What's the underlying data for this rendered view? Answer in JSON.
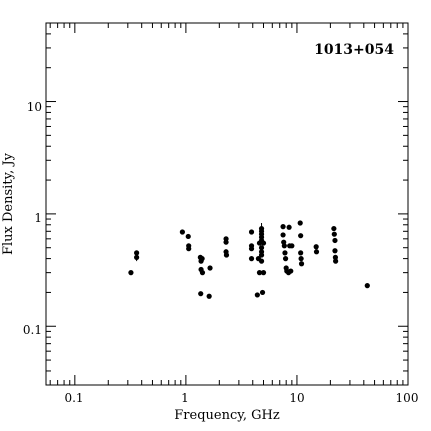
{
  "chart_data": {
    "type": "scatter",
    "title": "1013+054",
    "xlabel": "Frequency, GHz",
    "ylabel": "Flux Density, Jy",
    "xscale": "log",
    "yscale": "log",
    "xlim": [
      0.055,
      100
    ],
    "ylim": [
      0.03,
      50
    ],
    "grid": false,
    "x_tick_labels": [
      "0.1",
      "1",
      "10",
      "100"
    ],
    "y_tick_labels": [
      "0.1",
      "1",
      "10"
    ],
    "points": [
      {
        "x": 0.32,
        "y": 0.3
      },
      {
        "x": 0.36,
        "y": 0.45
      },
      {
        "x": 0.36,
        "y": 0.41,
        "err": 0.03
      },
      {
        "x": 0.93,
        "y": 0.69
      },
      {
        "x": 1.05,
        "y": 0.63
      },
      {
        "x": 1.06,
        "y": 0.52
      },
      {
        "x": 1.06,
        "y": 0.49
      },
      {
        "x": 1.35,
        "y": 0.41
      },
      {
        "x": 1.37,
        "y": 0.38
      },
      {
        "x": 1.37,
        "y": 0.32
      },
      {
        "x": 1.36,
        "y": 0.195
      },
      {
        "x": 1.4,
        "y": 0.4
      },
      {
        "x": 1.41,
        "y": 0.3
      },
      {
        "x": 1.62,
        "y": 0.185
      },
      {
        "x": 1.65,
        "y": 0.33
      },
      {
        "x": 2.3,
        "y": 0.6
      },
      {
        "x": 2.3,
        "y": 0.56
      },
      {
        "x": 2.3,
        "y": 0.46
      },
      {
        "x": 2.32,
        "y": 0.43
      },
      {
        "x": 3.9,
        "y": 0.69
      },
      {
        "x": 3.9,
        "y": 0.52
      },
      {
        "x": 3.9,
        "y": 0.49
      },
      {
        "x": 3.9,
        "y": 0.4
      },
      {
        "x": 4.4,
        "y": 0.19
      },
      {
        "x": 4.5,
        "y": 0.4
      },
      {
        "x": 4.6,
        "y": 0.55
      },
      {
        "x": 4.6,
        "y": 0.3
      },
      {
        "x": 4.8,
        "y": 0.74,
        "err": 0.09
      },
      {
        "x": 4.8,
        "y": 0.7
      },
      {
        "x": 4.8,
        "y": 0.66
      },
      {
        "x": 4.8,
        "y": 0.62
      },
      {
        "x": 4.8,
        "y": 0.58
      },
      {
        "x": 4.8,
        "y": 0.5
      },
      {
        "x": 4.8,
        "y": 0.46
      },
      {
        "x": 4.8,
        "y": 0.43
      },
      {
        "x": 4.8,
        "y": 0.38
      },
      {
        "x": 4.9,
        "y": 0.2
      },
      {
        "x": 5.0,
        "y": 0.3
      },
      {
        "x": 5.0,
        "y": 0.55
      },
      {
        "x": 7.5,
        "y": 0.77
      },
      {
        "x": 7.5,
        "y": 0.65
      },
      {
        "x": 7.6,
        "y": 0.56
      },
      {
        "x": 7.7,
        "y": 0.52
      },
      {
        "x": 7.8,
        "y": 0.45
      },
      {
        "x": 7.9,
        "y": 0.4
      },
      {
        "x": 8.0,
        "y": 0.33
      },
      {
        "x": 8.1,
        "y": 0.31
      },
      {
        "x": 8.4,
        "y": 0.3
      },
      {
        "x": 8.5,
        "y": 0.76
      },
      {
        "x": 8.6,
        "y": 0.52
      },
      {
        "x": 8.8,
        "y": 0.31
      },
      {
        "x": 9.0,
        "y": 0.52
      },
      {
        "x": 10.7,
        "y": 0.83
      },
      {
        "x": 10.8,
        "y": 0.64
      },
      {
        "x": 10.8,
        "y": 0.45
      },
      {
        "x": 10.9,
        "y": 0.4
      },
      {
        "x": 11.0,
        "y": 0.36
      },
      {
        "x": 14.9,
        "y": 0.51
      },
      {
        "x": 15.0,
        "y": 0.46
      },
      {
        "x": 21.5,
        "y": 0.74
      },
      {
        "x": 21.7,
        "y": 0.66
      },
      {
        "x": 22.0,
        "y": 0.58
      },
      {
        "x": 22.0,
        "y": 0.47
      },
      {
        "x": 22.2,
        "y": 0.41
      },
      {
        "x": 22.3,
        "y": 0.38
      },
      {
        "x": 43.0,
        "y": 0.23
      }
    ]
  }
}
